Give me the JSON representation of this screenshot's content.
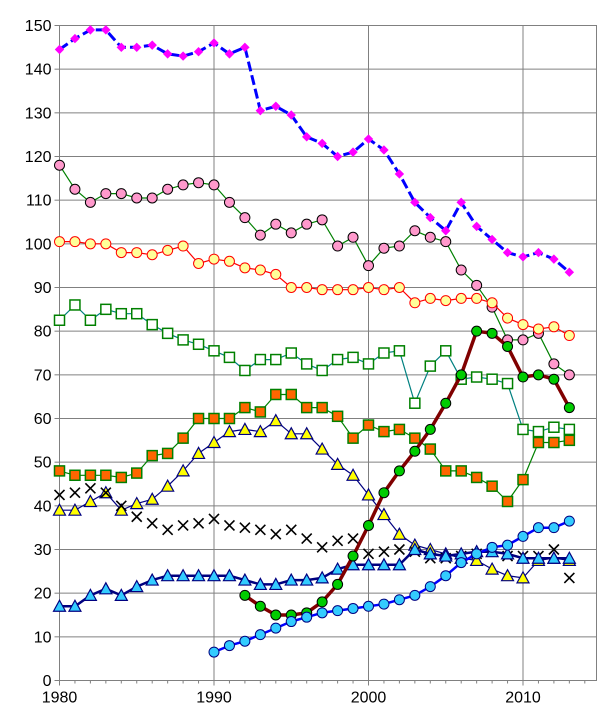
{
  "chart_data": {
    "type": "line",
    "title": "",
    "xlabel": "",
    "ylabel": "",
    "xlim": [
      1980,
      2014
    ],
    "ylim": [
      0,
      150
    ],
    "grid": "on",
    "legend": "none",
    "x_ticks": [
      "1980",
      "1990",
      "2000",
      "2010"
    ],
    "y_ticks": [
      "0",
      "10",
      "20",
      "30",
      "40",
      "50",
      "60",
      "70",
      "80",
      "90",
      "100",
      "110",
      "120",
      "130",
      "140",
      "150"
    ],
    "series": [
      {
        "color": "#0000ff",
        "line_color": "#0000ff",
        "marker": "diamond",
        "marker_fill": "#ff00ff",
        "marker_stroke": "#ff00ff",
        "dashed": true,
        "line_width": 3,
        "x": [
          1980,
          1981,
          1982,
          1983,
          1984,
          1985,
          1986,
          1987,
          1988,
          1989,
          1990,
          1991,
          1992,
          1993,
          1994,
          1995,
          1996,
          1997,
          1998,
          1999,
          2000,
          2001,
          2002,
          2003,
          2004,
          2005,
          2006,
          2007,
          2008,
          2009,
          2010,
          2011,
          2012,
          2013
        ],
        "y": [
          144.5,
          147,
          149,
          149,
          145,
          145,
          145.5,
          143.5,
          143,
          144,
          146,
          143.5,
          145,
          130.5,
          131.5,
          129.5,
          124.5,
          123,
          120,
          121,
          124,
          121.5,
          116,
          109.5,
          106,
          103,
          109.5,
          104,
          101,
          98,
          97,
          98,
          96.5,
          93.5
        ]
      },
      {
        "color": "#008000",
        "line_color": "#008000",
        "marker": "circle",
        "marker_fill": "#ff99cc",
        "marker_stroke": "#000000",
        "line_width": 1.2,
        "x": [
          1980,
          1981,
          1982,
          1983,
          1984,
          1985,
          1986,
          1987,
          1988,
          1989,
          1990,
          1991,
          1992,
          1993,
          1994,
          1995,
          1996,
          1997,
          1998,
          1999,
          2000,
          2001,
          2002,
          2003,
          2004,
          2005,
          2006,
          2007,
          2008,
          2009,
          2010,
          2011,
          2012,
          2013
        ],
        "y": [
          118,
          112.5,
          109.5,
          111.5,
          111.5,
          110.5,
          110.5,
          112.5,
          113.5,
          114,
          113.5,
          109.5,
          106,
          102,
          104.5,
          102.5,
          104.5,
          105.5,
          99.5,
          101.5,
          95,
          99,
          99.5,
          103,
          101.5,
          100.5,
          94,
          90.5,
          85.5,
          78,
          78,
          79.5,
          72.5,
          70
        ]
      },
      {
        "color": "#ff0000",
        "line_color": "#ff0000",
        "marker": "circle",
        "marker_fill": "#ffff99",
        "marker_stroke": "#ff0000",
        "line_width": 1.2,
        "x": [
          1980,
          1981,
          1982,
          1983,
          1984,
          1985,
          1986,
          1987,
          1988,
          1989,
          1990,
          1991,
          1992,
          1993,
          1994,
          1995,
          1996,
          1997,
          1998,
          1999,
          2000,
          2001,
          2002,
          2003,
          2004,
          2005,
          2006,
          2007,
          2008,
          2009,
          2010,
          2011,
          2012,
          2013
        ],
        "y": [
          100.5,
          100.5,
          100,
          100,
          98,
          98,
          97.5,
          98.5,
          99.5,
          95.5,
          96.5,
          96,
          94.5,
          94,
          93,
          90,
          90,
          89.5,
          89.5,
          89.5,
          90,
          89.5,
          90,
          86.5,
          87.5,
          87,
          87.5,
          87.5,
          86.5,
          83,
          81.5,
          80.5,
          81,
          79
        ]
      },
      {
        "color": "#008080",
        "line_color": "#008080",
        "marker": "square",
        "marker_fill": "#ffffff",
        "marker_stroke": "#008000",
        "line_width": 1.2,
        "x": [
          1980,
          1981,
          1982,
          1983,
          1984,
          1985,
          1986,
          1987,
          1988,
          1989,
          1990,
          1991,
          1992,
          1993,
          1994,
          1995,
          1996,
          1997,
          1998,
          1999,
          2000,
          2001,
          2002,
          2003,
          2004,
          2005,
          2006,
          2007,
          2008,
          2009,
          2010,
          2011,
          2012,
          2013
        ],
        "y": [
          82.5,
          86,
          82.5,
          85,
          84,
          84,
          81.5,
          79.5,
          78,
          77,
          75.5,
          74,
          71,
          73.5,
          73.5,
          75,
          72.5,
          71,
          73.5,
          74,
          72.5,
          75,
          75.5,
          63.5,
          72,
          75.5,
          69,
          69.5,
          69,
          68,
          57.5,
          57,
          58,
          57.5
        ]
      },
      {
        "color": "#008000",
        "line_color": "#008000",
        "marker": "square",
        "marker_fill": "#ff6600",
        "marker_stroke": "#008000",
        "line_width": 1.2,
        "x": [
          1980,
          1981,
          1982,
          1983,
          1984,
          1985,
          1986,
          1987,
          1988,
          1989,
          1990,
          1991,
          1992,
          1993,
          1994,
          1995,
          1996,
          1997,
          1998,
          1999,
          2000,
          2001,
          2002,
          2003,
          2004,
          2005,
          2006,
          2007,
          2008,
          2009,
          2010,
          2011,
          2012,
          2013
        ],
        "y": [
          48,
          47,
          47,
          47,
          46.5,
          47.5,
          51.5,
          52,
          55.5,
          60,
          60,
          60,
          62.5,
          61.5,
          65.5,
          65.5,
          62.5,
          62.5,
          60.5,
          55.5,
          58.5,
          57,
          57.5,
          55.5,
          53,
          48,
          48,
          46.5,
          44.5,
          41,
          46,
          54.5,
          54.5,
          55
        ]
      },
      {
        "color": "#000080",
        "line_color": "#000080",
        "marker": "triangle",
        "marker_fill": "#ffff00",
        "marker_stroke": "#000080",
        "line_width": 1.2,
        "x": [
          1980,
          1981,
          1982,
          1983,
          1984,
          1985,
          1986,
          1987,
          1988,
          1989,
          1990,
          1991,
          1992,
          1993,
          1994,
          1995,
          1996,
          1997,
          1998,
          1999,
          2000,
          2001,
          2002,
          2003,
          2004,
          2005,
          2006,
          2007,
          2008,
          2009,
          2010,
          2011,
          2012,
          2013
        ],
        "y": [
          39,
          39,
          41,
          43,
          39,
          40.5,
          41.5,
          44.5,
          48,
          52,
          54.5,
          57,
          57.5,
          57,
          59.5,
          56.5,
          56.5,
          53,
          49.5,
          47,
          42.5,
          38,
          33.5,
          31,
          30,
          29,
          28,
          27.5,
          25.5,
          24,
          23.5,
          27.5,
          28,
          27.5
        ]
      },
      {
        "color": "#000000",
        "line_color": "none",
        "marker": "x",
        "marker_fill": "none",
        "marker_stroke": "#000000",
        "line_width": 0,
        "x": [
          1980,
          1981,
          1982,
          1983,
          1984,
          1985,
          1986,
          1987,
          1988,
          1989,
          1990,
          1991,
          1992,
          1993,
          1994,
          1995,
          1996,
          1997,
          1998,
          1999,
          2000,
          2001,
          2002,
          2003,
          2004,
          2005,
          2006,
          2007,
          2008,
          2009,
          2010,
          2011,
          2012,
          2013
        ],
        "y": [
          42.5,
          43,
          44,
          43,
          40,
          37.5,
          36,
          34.5,
          35.5,
          36,
          37,
          35.5,
          35,
          34.5,
          33.5,
          34.5,
          32.5,
          30.5,
          32,
          32.5,
          29,
          29.5,
          30,
          29.5,
          28,
          28,
          28.5,
          29,
          29.5,
          28.5,
          28.5,
          28.5,
          30,
          23.5
        ]
      },
      {
        "color": "#000080",
        "line_color": "#000080",
        "marker": "triangle",
        "marker_fill": "#33ccff",
        "marker_stroke": "#000080",
        "line_width": 2.5,
        "x": [
          1980,
          1981,
          1982,
          1983,
          1984,
          1985,
          1986,
          1987,
          1988,
          1989,
          1990,
          1991,
          1992,
          1993,
          1994,
          1995,
          1996,
          1997,
          1998,
          1999,
          2000,
          2001,
          2002,
          2003,
          2004,
          2005,
          2006,
          2007,
          2008,
          2009,
          2010,
          2011,
          2012,
          2013
        ],
        "y": [
          17,
          17,
          19.5,
          21,
          19.5,
          21.5,
          23,
          24,
          24,
          24,
          24,
          24,
          23,
          22,
          22,
          23,
          23,
          23.5,
          25.5,
          26.5,
          26.5,
          26.5,
          26.5,
          30,
          29,
          28.5,
          29,
          29.5,
          29.5,
          29,
          28,
          28,
          28,
          28
        ]
      },
      {
        "color": "#800000",
        "line_color": "#800000",
        "marker": "circle",
        "marker_fill": "#00cc00",
        "marker_stroke": "#000000",
        "line_width": 3.5,
        "x": [
          1992,
          1993,
          1994,
          1995,
          1996,
          1997,
          1998,
          1999,
          2000,
          2001,
          2002,
          2003,
          2004,
          2005,
          2006,
          2007,
          2008,
          2009,
          2010,
          2011,
          2012,
          2013
        ],
        "y": [
          19.5,
          17,
          15,
          15,
          15.5,
          18,
          22,
          28.5,
          35.5,
          43,
          48,
          52.5,
          57.5,
          63.5,
          70,
          80,
          79.5,
          76.5,
          69.5,
          70,
          69,
          62.5
        ]
      },
      {
        "color": "#0000ff",
        "line_color": "#0000ff",
        "marker": "circle",
        "marker_fill": "#33ccff",
        "marker_stroke": "#000080",
        "line_width": 2.5,
        "x": [
          1990,
          1991,
          1992,
          1993,
          1994,
          1995,
          1996,
          1997,
          1998,
          1999,
          2000,
          2001,
          2002,
          2003,
          2004,
          2005,
          2006,
          2007,
          2008,
          2009,
          2010,
          2011,
          2012,
          2013
        ],
        "y": [
          6.5,
          8,
          9,
          10.5,
          12,
          13.5,
          14.5,
          15.5,
          16,
          16.5,
          17,
          17.5,
          18.5,
          19.5,
          21.5,
          24,
          27,
          29,
          30.5,
          31,
          33,
          35,
          35,
          36.5
        ]
      }
    ]
  }
}
